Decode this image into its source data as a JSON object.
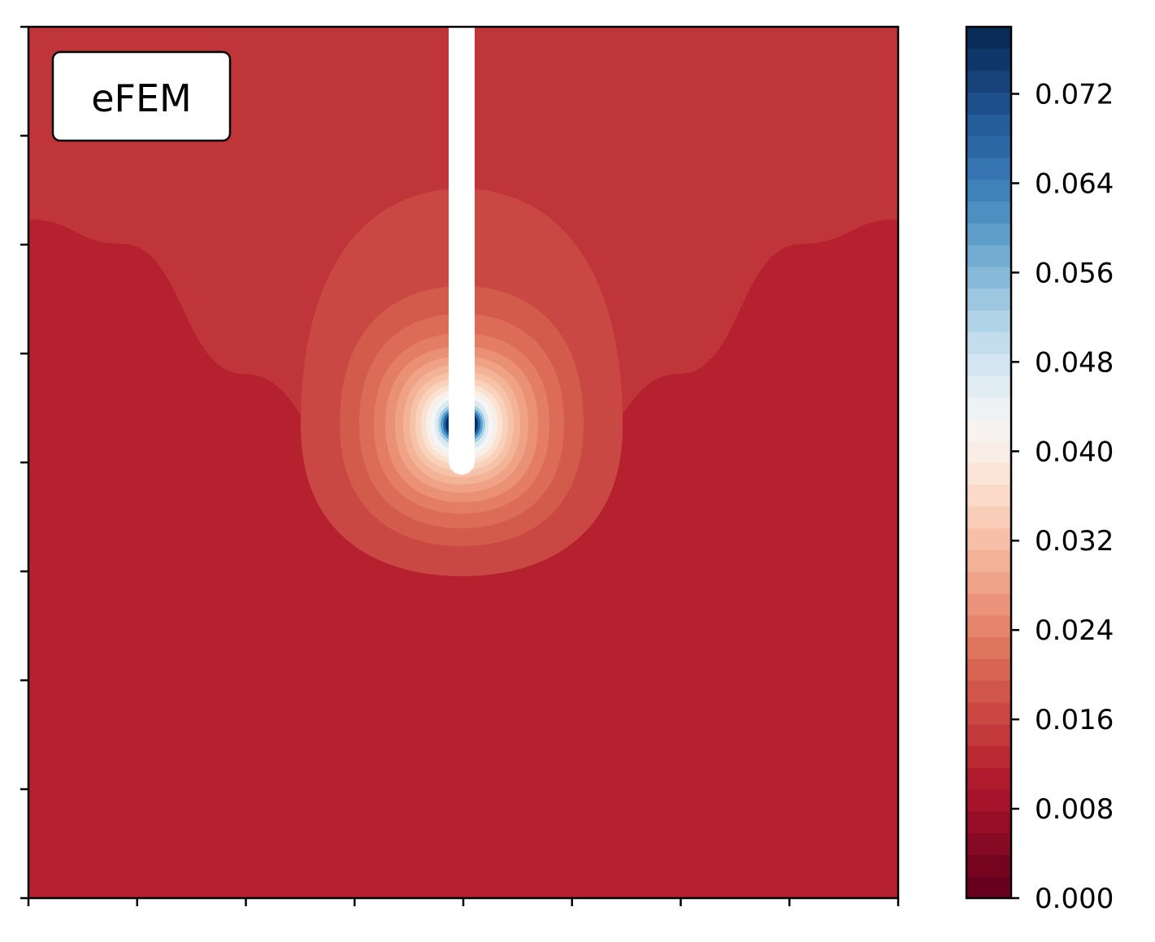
{
  "chart_data": {
    "type": "contour",
    "annotation": "eFEM",
    "xlabel": "",
    "ylabel": "",
    "x_tick_count": 9,
    "y_tick_count": 9,
    "colormap": "RdBu",
    "colorbar": {
      "vmin": 0.0,
      "vmax": 0.078,
      "levels": 40,
      "ticks": [
        0.0,
        0.008,
        0.016,
        0.024,
        0.032,
        0.04,
        0.048,
        0.056,
        0.064,
        0.072
      ],
      "tick_labels": [
        "0.000",
        "0.008",
        "0.016",
        "0.024",
        "0.032",
        "0.040",
        "0.048",
        "0.056",
        "0.064",
        "0.072"
      ]
    },
    "crack": {
      "x": 0.5,
      "y_top": 1.0,
      "y_tip": 0.5
    },
    "bands": [
      {
        "value": 0.001,
        "color": "#6b0021"
      },
      {
        "value": 0.003,
        "color": "#7f0622"
      },
      {
        "value": 0.005,
        "color": "#940f26"
      },
      {
        "value": 0.007,
        "color": "#a81529"
      },
      {
        "value": 0.009,
        "color": "#b5212e"
      },
      {
        "value": 0.011,
        "color": "#c0353a"
      }
    ],
    "tip_rings": [
      {
        "value": 0.013,
        "color": "#ca4843"
      },
      {
        "value": 0.015,
        "color": "#d35b4b"
      },
      {
        "value": 0.017,
        "color": "#dc6c57"
      },
      {
        "value": 0.019,
        "color": "#e37e65"
      },
      {
        "value": 0.021,
        "color": "#ea9075"
      },
      {
        "value": 0.023,
        "color": "#efa285"
      },
      {
        "value": 0.025,
        "color": "#f3b396"
      },
      {
        "value": 0.027,
        "color": "#f6c3a9"
      },
      {
        "value": 0.03,
        "color": "#f9d2bb"
      },
      {
        "value": 0.033,
        "color": "#fbe1cf"
      },
      {
        "value": 0.036,
        "color": "#f8efe9"
      },
      {
        "value": 0.04,
        "color": "#f4f5f6"
      },
      {
        "value": 0.046,
        "color": "#dbe9f1"
      },
      {
        "value": 0.054,
        "color": "#a7cfe4"
      },
      {
        "value": 0.062,
        "color": "#5aa1cd"
      },
      {
        "value": 0.07,
        "color": "#2469ad"
      },
      {
        "value": 0.078,
        "color": "#073264"
      }
    ],
    "colorbar_colors": [
      "#67001f",
      "#76041f",
      "#870a24",
      "#970f27",
      "#a5142a",
      "#b01b2d",
      "#bb2a33",
      "#c3393b",
      "#ca4742",
      "#d0564b",
      "#d86553",
      "#df755e",
      "#e5856d",
      "#eb947b",
      "#efa389",
      "#f3b298",
      "#f6c0a8",
      "#f9ceb8",
      "#fbdac9",
      "#fbe4d8",
      "#f9ede6",
      "#f6f3f1",
      "#eef2f5",
      "#e2edf3",
      "#d3e5f0",
      "#c3ddec",
      "#b1d3e7",
      "#9dc7e0",
      "#87bad8",
      "#72acd1",
      "#5f9ec9",
      "#4d8fc1",
      "#3f82ba",
      "#3675b1",
      "#2d68a6",
      "#255c9a",
      "#1e4f8b",
      "#17427a",
      "#103769",
      "#092b58"
    ]
  }
}
